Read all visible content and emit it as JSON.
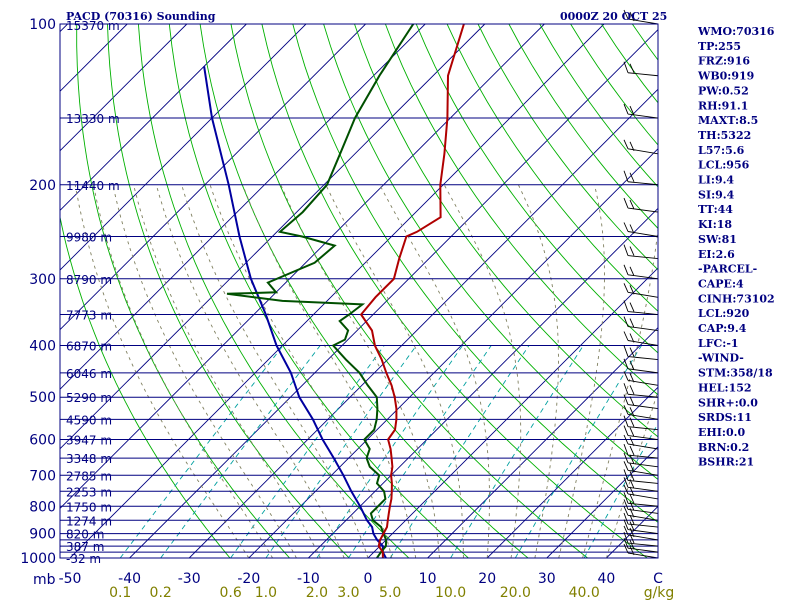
{
  "title_left": "PACD (70316) Sounding",
  "title_right": "0000Z 20 OCT 25",
  "colors": {
    "frame": "#000080",
    "isobar": "#000080",
    "isotherm": "#000080",
    "dry_adiabat": "#00b000",
    "mixing_ratio": "#00a0a0",
    "moist_adiabat": "#808060",
    "temperature": "#b00000",
    "dewpoint": "#005000",
    "parcel": "#0000a0",
    "wind": "#000000",
    "labels": "#000080",
    "mixing_ratio_labels": "#808000"
  },
  "chart_data": {
    "type": "skew-t log-p sounding",
    "p_top": 100,
    "p_bottom": 1000,
    "pressure_axis_unit": "mb",
    "pressure_ticks": [
      100,
      200,
      300,
      400,
      500,
      600,
      700,
      800,
      900,
      1000
    ],
    "isobars": [
      100,
      150,
      200,
      250,
      300,
      350,
      400,
      450,
      500,
      550,
      600,
      650,
      700,
      750,
      800,
      850,
      900,
      925,
      950,
      975,
      1000
    ],
    "height_labels": [
      {
        "p": 150,
        "label": "13330 m"
      },
      {
        "p": 200,
        "label": "11440 m"
      },
      {
        "p": 250,
        "label": "9980 m"
      },
      {
        "p": 300,
        "label": "8790 m"
      },
      {
        "p": 350,
        "label": "7773 m"
      },
      {
        "p": 400,
        "label": "6870 m"
      },
      {
        "p": 450,
        "label": "6046 m"
      },
      {
        "p": 500,
        "label": "5290 m"
      },
      {
        "p": 550,
        "label": "4590 m"
      },
      {
        "p": 600,
        "label": "3947 m"
      },
      {
        "p": 650,
        "label": "3348 m"
      },
      {
        "p": 700,
        "label": "2785 m"
      },
      {
        "p": 750,
        "label": "2253 m"
      },
      {
        "p": 800,
        "label": "1750 m"
      },
      {
        "p": 850,
        "label": "1274 m"
      },
      {
        "p": 900,
        "label": "820 m"
      },
      {
        "p": 950,
        "label": "387 m"
      },
      {
        "p": 1000,
        "label": "-32 m"
      }
    ],
    "top_height_label": "15370 m",
    "temperature_axis_labels": [
      "-50",
      "-40",
      "-30",
      "-20",
      "-10",
      "0",
      "10",
      "20",
      "30",
      "40",
      "C"
    ],
    "temperature_axis_values": [
      -50,
      -40,
      -30,
      -20,
      -10,
      0,
      10,
      20,
      30,
      40
    ],
    "mixing_ratio_labels": [
      "0.1",
      "0.2",
      "0.6",
      "1.0",
      "2.0",
      "3.0",
      "5.0",
      "10.0",
      "20.0",
      "40.0",
      "g/kg"
    ],
    "mixing_ratio_values": [
      0.1,
      0.2,
      0.6,
      1.0,
      2.0,
      3.0,
      5.0,
      10.0,
      20.0,
      40.0
    ],
    "mixing_ratio_unit": "g/kg",
    "temperature_profile": [
      [
        1000,
        2.5
      ],
      [
        975,
        1.5
      ],
      [
        950,
        -0.2
      ],
      [
        925,
        -1.0
      ],
      [
        900,
        -1.5
      ],
      [
        875,
        -2.0
      ],
      [
        850,
        -3.0
      ],
      [
        825,
        -4.0
      ],
      [
        800,
        -5.0
      ],
      [
        775,
        -6.0
      ],
      [
        750,
        -7.2
      ],
      [
        725,
        -8.5
      ],
      [
        700,
        -10.0
      ],
      [
        675,
        -11.2
      ],
      [
        650,
        -12.8
      ],
      [
        625,
        -14.5
      ],
      [
        600,
        -16.5
      ],
      [
        575,
        -17.0
      ],
      [
        550,
        -18.5
      ],
      [
        525,
        -20.3
      ],
      [
        500,
        -22.5
      ],
      [
        475,
        -25.0
      ],
      [
        450,
        -28.0
      ],
      [
        425,
        -31.0
      ],
      [
        400,
        -34.5
      ],
      [
        375,
        -37.5
      ],
      [
        350,
        -42.0
      ],
      [
        325,
        -42.5
      ],
      [
        300,
        -42.5
      ],
      [
        275,
        -45.0
      ],
      [
        250,
        -47.5
      ],
      [
        245,
        -46.5
      ],
      [
        230,
        -45.0
      ],
      [
        200,
        -50.5
      ],
      [
        175,
        -55.0
      ],
      [
        150,
        -60.5
      ],
      [
        125,
        -67.5
      ],
      [
        100,
        -73.5
      ]
    ],
    "dewpoint_profile": [
      [
        1000,
        1.5
      ],
      [
        975,
        1.2
      ],
      [
        950,
        1.0
      ],
      [
        925,
        0.0
      ],
      [
        900,
        -1.5
      ],
      [
        875,
        -3.0
      ],
      [
        850,
        -5.5
      ],
      [
        825,
        -7.0
      ],
      [
        800,
        -7.0
      ],
      [
        775,
        -7.0
      ],
      [
        750,
        -8.5
      ],
      [
        725,
        -11.0
      ],
      [
        700,
        -12.0
      ],
      [
        675,
        -15.0
      ],
      [
        650,
        -17.0
      ],
      [
        625,
        -18.0
      ],
      [
        600,
        -20.5
      ],
      [
        575,
        -20.5
      ],
      [
        550,
        -21.8
      ],
      [
        525,
        -23.5
      ],
      [
        500,
        -25.5
      ],
      [
        475,
        -29.0
      ],
      [
        450,
        -32.5
      ],
      [
        425,
        -37.0
      ],
      [
        400,
        -41.5
      ],
      [
        390,
        -40.5
      ],
      [
        375,
        -41.5
      ],
      [
        360,
        -44.5
      ],
      [
        350,
        -44.0
      ],
      [
        335,
        -43.5
      ],
      [
        330,
        -57.5
      ],
      [
        320,
        -68.0
      ],
      [
        318,
        -60.0
      ],
      [
        305,
        -63.0
      ],
      [
        280,
        -58.5
      ],
      [
        260,
        -58.0
      ],
      [
        250,
        -65.0
      ],
      [
        245,
        -69.5
      ],
      [
        225,
        -69.0
      ],
      [
        200,
        -69.5
      ],
      [
        175,
        -72.5
      ],
      [
        150,
        -76.0
      ],
      [
        125,
        -79.0
      ],
      [
        100,
        -82.0
      ]
    ],
    "parcel_profile": [
      [
        1000,
        3.0
      ],
      [
        975,
        1.5
      ],
      [
        950,
        0.5
      ],
      [
        925,
        -1.5
      ],
      [
        900,
        -3.2
      ],
      [
        875,
        -4.5
      ],
      [
        850,
        -6.5
      ],
      [
        800,
        -10.0
      ],
      [
        750,
        -14.0
      ],
      [
        700,
        -18.0
      ],
      [
        650,
        -22.5
      ],
      [
        600,
        -27.5
      ],
      [
        550,
        -32.5
      ],
      [
        500,
        -38.5
      ],
      [
        450,
        -44.0
      ],
      [
        400,
        -51.0
      ],
      [
        350,
        -58.0
      ],
      [
        300,
        -66.5
      ],
      [
        250,
        -75.5
      ],
      [
        200,
        -86.0
      ],
      [
        150,
        -100.0
      ],
      [
        120,
        -110.0
      ]
    ],
    "wind_barb_pressures": [
      1000,
      975,
      950,
      925,
      900,
      875,
      850,
      825,
      800,
      775,
      750,
      725,
      700,
      675,
      650,
      625,
      600,
      575,
      550,
      525,
      500,
      475,
      450,
      425,
      400,
      375,
      350,
      325,
      300,
      275,
      250,
      225,
      200,
      175,
      150,
      125,
      100
    ],
    "stats": [
      "WMO:70316",
      "TP:255",
      "FRZ:916",
      "WB0:919",
      "PW:0.52",
      "RH:91.1",
      "MAXT:8.5",
      "TH:5322",
      "L57:5.6",
      "LCL:956",
      "LI:9.4",
      "SI:9.4",
      "TT:44",
      "KI:18",
      "SW:81",
      "EI:2.6",
      "-PARCEL-",
      "CAPE:4",
      "CINH:73102",
      "LCL:920",
      "CAP:9.4",
      "LFC:-1",
      "-WIND-",
      "STM:358/18",
      "HEL:152",
      "SHR+:0.0",
      "SRDS:11",
      "EHI:0.0",
      "BRN:0.2",
      "BSHR:21"
    ]
  }
}
